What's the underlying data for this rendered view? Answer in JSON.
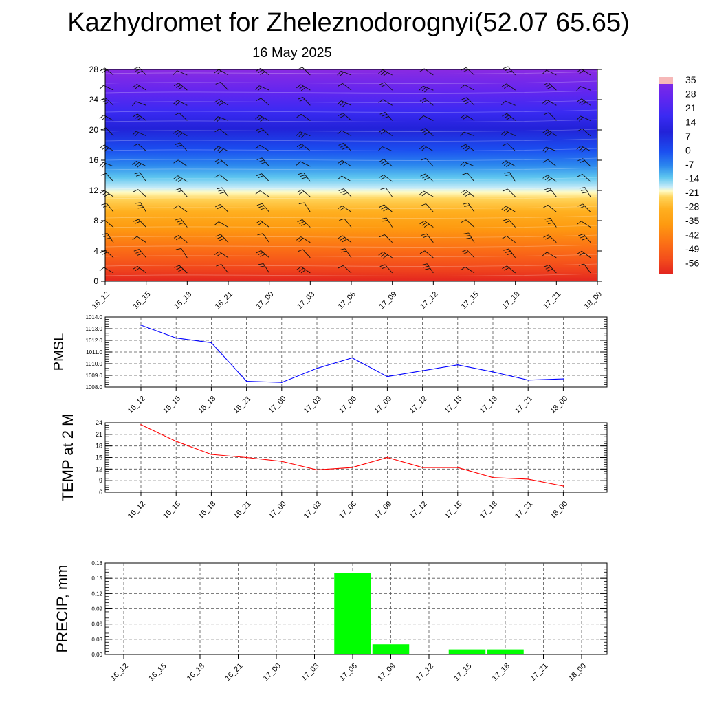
{
  "title": "Kazhydromet for Zheleznodorognyi(52.07 65.65)",
  "subtitle": "16 May 2025",
  "colors": {
    "pmsl_line": "#0000ff",
    "temp_line": "#ff0000",
    "precip_bar": "#00ff00"
  },
  "chart_data": [
    {
      "type": "heatmap",
      "name": "upper-air temperature and wind cross-section",
      "x_ticks": [
        "16_12",
        "16_15",
        "16_18",
        "16_21",
        "17_00",
        "17_03",
        "17_06",
        "17_09",
        "17_12",
        "17_15",
        "17_18",
        "17_21",
        "18_00"
      ],
      "y_ticks": [
        0,
        4,
        8,
        12,
        16,
        20,
        24,
        28
      ],
      "ylim": [
        0,
        28
      ],
      "colorbar_labels": [
        "35",
        "28",
        "21",
        "14",
        "7",
        "0",
        "-7",
        "-14",
        "-21",
        "-28",
        "-35",
        "-42",
        "-49",
        "-56"
      ],
      "colorbar_range": [
        -63,
        42
      ]
    },
    {
      "type": "line",
      "ylabel": "PMSL",
      "x": [
        "16_12",
        "16_15",
        "16_18",
        "16_21",
        "17_00",
        "17_03",
        "17_06",
        "17_09",
        "17_12",
        "17_15",
        "17_18",
        "17_21",
        "18_00"
      ],
      "values": [
        1013.3,
        1012.2,
        1011.8,
        1008.5,
        1008.4,
        1009.6,
        1010.5,
        1008.9,
        1009.4,
        1009.9,
        1009.3,
        1008.6,
        1008.7
      ],
      "y_ticks": [
        "1008.0",
        "1009.0",
        "1010.0",
        "1011.0",
        "1012.0",
        "1013.0",
        "1014.0"
      ],
      "ylim": [
        1008,
        1014
      ],
      "grid": true
    },
    {
      "type": "line",
      "ylabel": "TEMP at 2 M",
      "x": [
        "16_12",
        "16_15",
        "16_18",
        "16_21",
        "17_00",
        "17_03",
        "17_06",
        "17_09",
        "17_12",
        "17_15",
        "17_18",
        "17_21",
        "18_00"
      ],
      "values": [
        23.5,
        19.2,
        15.8,
        15.0,
        14.0,
        11.8,
        12.4,
        15.0,
        12.4,
        12.4,
        9.8,
        9.4,
        7.6
      ],
      "y_ticks": [
        "6",
        "9",
        "12",
        "15",
        "18",
        "21",
        "24"
      ],
      "ylim": [
        6,
        24
      ],
      "grid": true
    },
    {
      "type": "bar",
      "ylabel": "PRECIP, mm",
      "categories": [
        "16_12",
        "16_15",
        "16_18",
        "16_21",
        "17_00",
        "17_03",
        "17_06",
        "17_09",
        "17_12",
        "17_15",
        "17_18",
        "17_21",
        "18_00"
      ],
      "values": [
        0,
        0,
        0,
        0,
        0,
        0,
        0.16,
        0.02,
        0,
        0.01,
        0.01,
        0,
        0
      ],
      "y_ticks": [
        "0.00",
        "0.03",
        "0.06",
        "0.09",
        "0.12",
        "0.15",
        "0.18"
      ],
      "ylim": [
        0,
        0.18
      ],
      "grid": true
    }
  ]
}
